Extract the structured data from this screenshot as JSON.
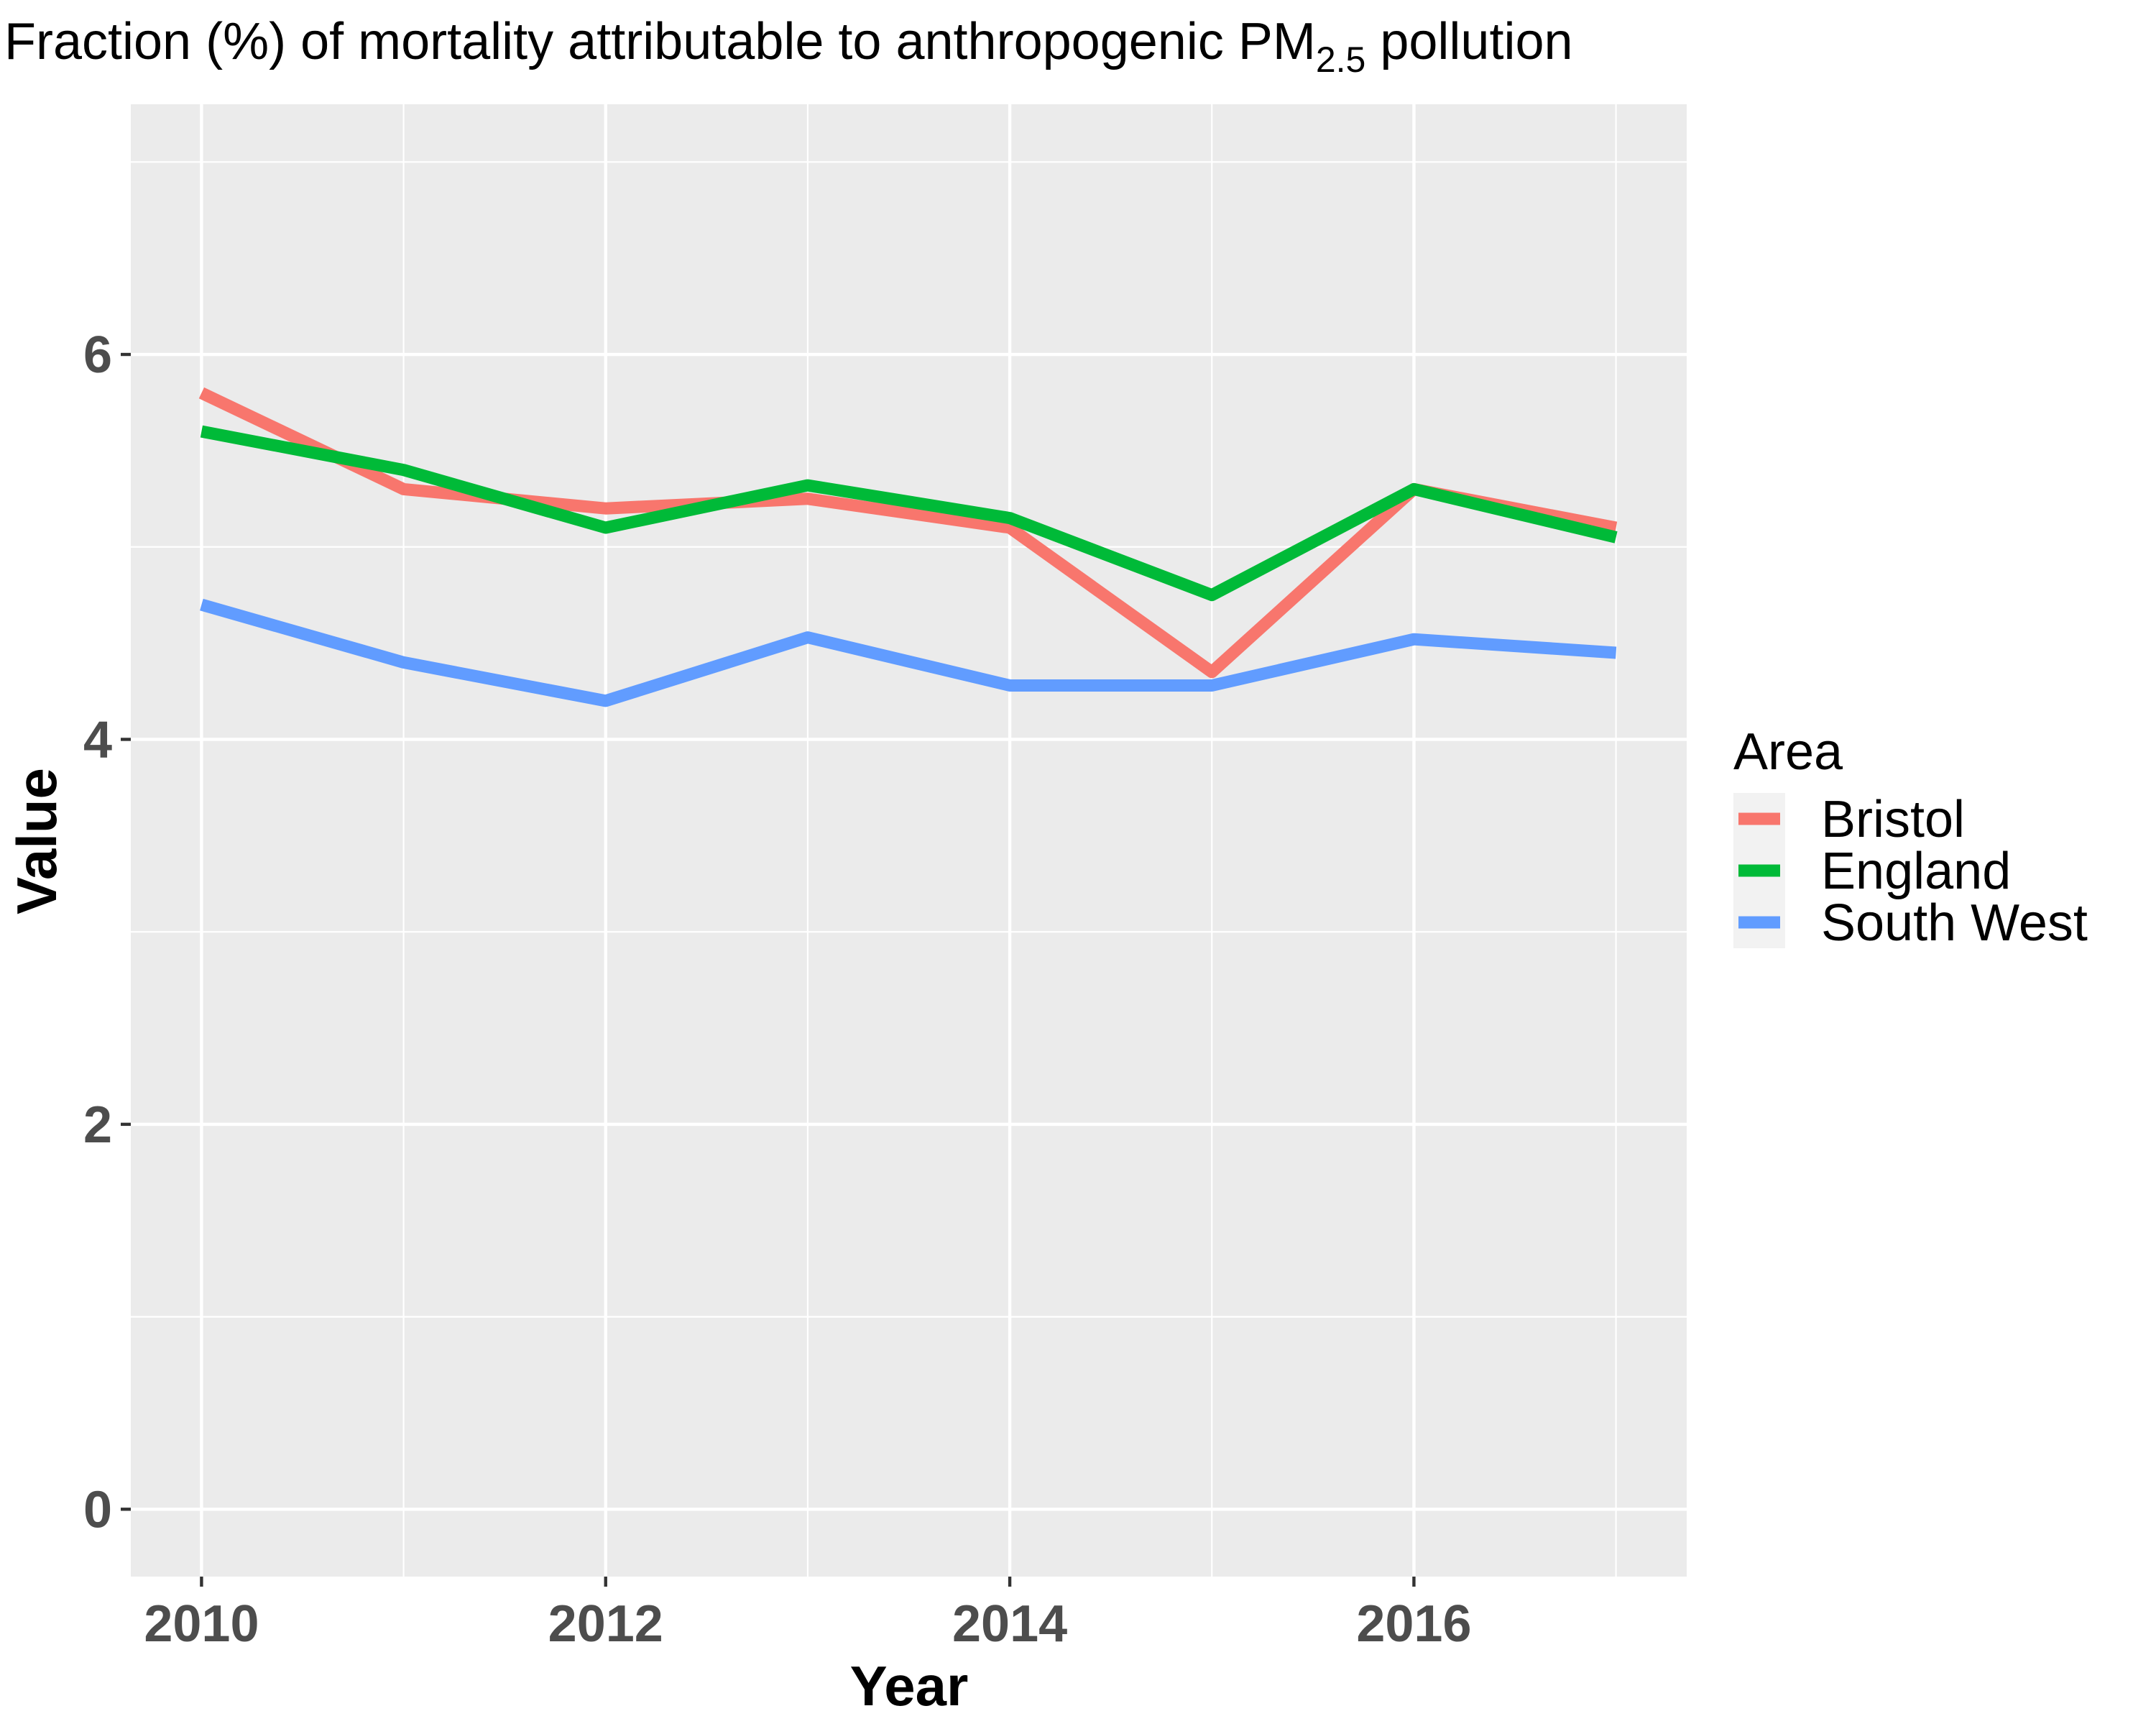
{
  "chart_data": {
    "type": "line",
    "title": {
      "main": "Fraction (%) of mortality attributable to anthropogenic PM",
      "subscript": "2.5",
      "suffix": " pollution"
    },
    "xlabel": "Year",
    "ylabel": "Value",
    "x": [
      2010,
      2011,
      2012,
      2013,
      2014,
      2015,
      2016,
      2017
    ],
    "xlim": [
      2009.65,
      2017.35
    ],
    "ylim": [
      -0.35,
      7.3
    ],
    "x_ticks": [
      2010,
      2012,
      2014,
      2016
    ],
    "x_tick_labels": [
      "2010",
      "2012",
      "2014",
      "2016"
    ],
    "y_ticks": [
      0,
      2,
      4,
      6
    ],
    "y_tick_labels": [
      "0",
      "2",
      "4",
      "6"
    ],
    "x_minor": [
      2011,
      2013,
      2015,
      2017
    ],
    "y_minor": [
      1,
      3,
      5,
      7
    ],
    "grid": true,
    "legend": {
      "title": "Area",
      "position": "right"
    },
    "series": [
      {
        "name": "Bristol",
        "color": "#F8766D",
        "values": [
          5.8,
          5.3,
          5.2,
          5.25,
          5.1,
          4.35,
          5.3,
          5.1
        ]
      },
      {
        "name": "England",
        "color": "#00BA38",
        "values": [
          5.6,
          5.4,
          5.1,
          5.32,
          5.15,
          4.75,
          5.3,
          5.05
        ]
      },
      {
        "name": "South West",
        "color": "#619CFF",
        "values": [
          4.7,
          4.4,
          4.2,
          4.53,
          4.28,
          4.28,
          4.52,
          4.45
        ]
      }
    ]
  }
}
